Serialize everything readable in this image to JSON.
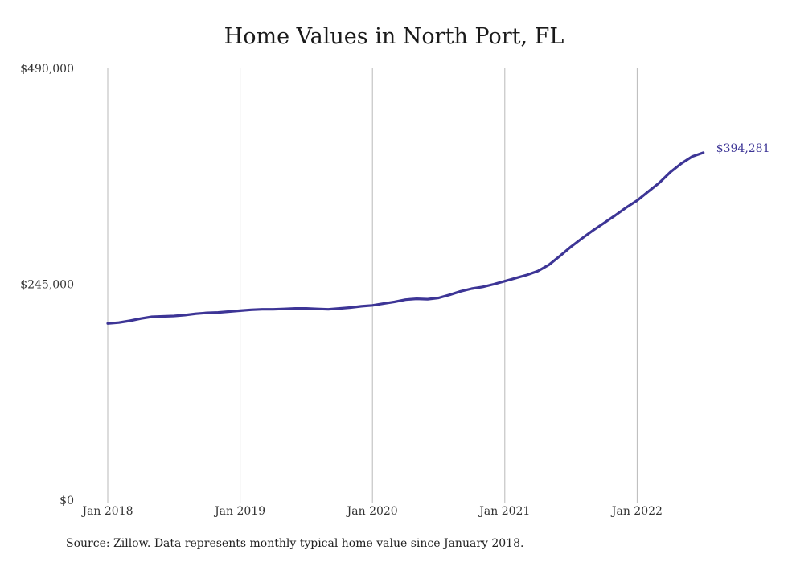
{
  "chart_data": {
    "type": "line",
    "title": "Home Values in North Port, FL",
    "xlabel": "",
    "ylabel": "",
    "y_ticks": [
      {
        "value": 0,
        "label": "$0"
      },
      {
        "value": 245000,
        "label": "$245,000"
      },
      {
        "value": 490000,
        "label": "$490,000"
      }
    ],
    "x_ticks": [
      {
        "value": "2018-01",
        "label": "Jan 2018"
      },
      {
        "value": "2019-01",
        "label": "Jan 2019"
      },
      {
        "value": "2020-01",
        "label": "Jan 2020"
      },
      {
        "value": "2021-01",
        "label": "Jan 2021"
      },
      {
        "value": "2022-01",
        "label": "Jan 2022"
      }
    ],
    "ylim": [
      0,
      490000
    ],
    "xlim": [
      "2018-01",
      "2022-07"
    ],
    "grid": "vertical",
    "line_color": "#3d3596",
    "series": [
      {
        "x": [
          "2018-01",
          "2018-02",
          "2018-03",
          "2018-04",
          "2018-05",
          "2018-06",
          "2018-07",
          "2018-08",
          "2018-09",
          "2018-10",
          "2018-11",
          "2018-12",
          "2019-01",
          "2019-02",
          "2019-03",
          "2019-04",
          "2019-05",
          "2019-06",
          "2019-07",
          "2019-08",
          "2019-09",
          "2019-10",
          "2019-11",
          "2019-12",
          "2020-01",
          "2020-02",
          "2020-03",
          "2020-04",
          "2020-05",
          "2020-06",
          "2020-07",
          "2020-08",
          "2020-09",
          "2020-10",
          "2020-11",
          "2020-12",
          "2021-01",
          "2021-02",
          "2021-03",
          "2021-04",
          "2021-05",
          "2021-06",
          "2021-07",
          "2021-08",
          "2021-09",
          "2021-10",
          "2021-11",
          "2021-12",
          "2022-01",
          "2022-02",
          "2022-03",
          "2022-04",
          "2022-05",
          "2022-06",
          "2022-07"
        ],
        "values": [
          200500,
          201500,
          203500,
          206000,
          208000,
          208500,
          209000,
          210000,
          211500,
          212500,
          213000,
          214000,
          215000,
          216000,
          216500,
          216500,
          217000,
          217500,
          217500,
          217000,
          216500,
          217500,
          218500,
          220000,
          221000,
          223000,
          225000,
          227500,
          228500,
          228000,
          229500,
          233000,
          237000,
          240000,
          242000,
          245000,
          248500,
          252000,
          255500,
          260000,
          267000,
          277000,
          287500,
          297000,
          306000,
          314500,
          323000,
          332000,
          340000,
          350000,
          360000,
          372000,
          382000,
          390000,
          394281
        ]
      }
    ],
    "end_label": "$394,281",
    "caption": "Source: Zillow. Data represents monthly typical home value since January 2018."
  }
}
